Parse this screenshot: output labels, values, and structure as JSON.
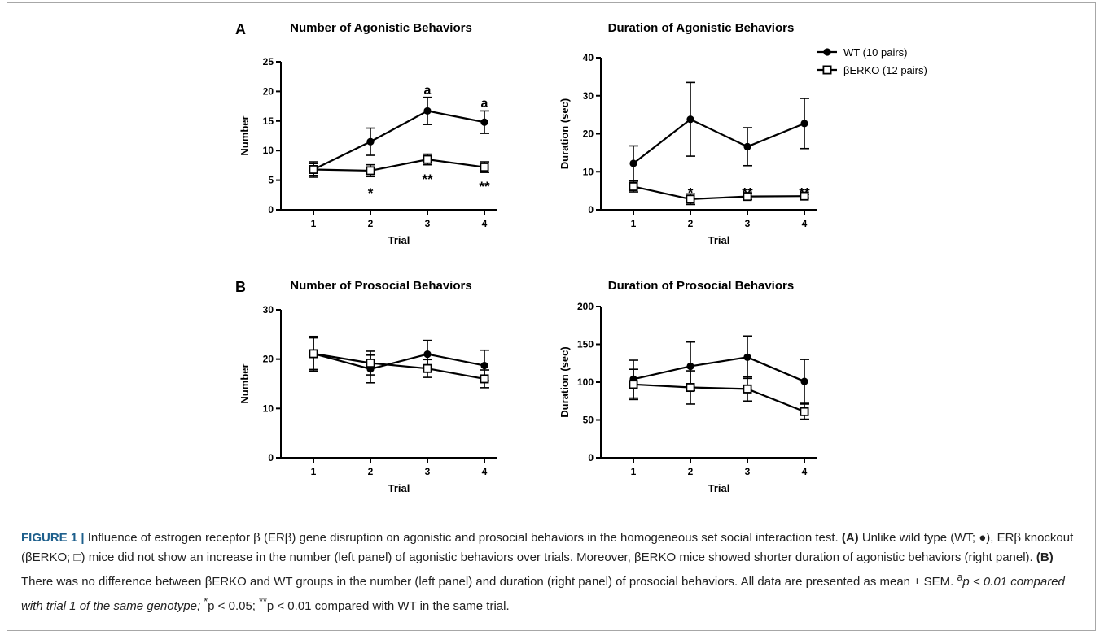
{
  "panel_letters": [
    "A",
    "B"
  ],
  "legend": {
    "wt": "WT (10 pairs)",
    "berko": "βERKO (12 pairs)"
  },
  "chart_data": [
    {
      "type": "line",
      "panel": "A",
      "title": "Number of Agonistic Behaviors",
      "xlabel": "Trial",
      "ylabel": "Number",
      "x": [
        1,
        2,
        3,
        4
      ],
      "xticks": [
        "1",
        "2",
        "3",
        "4"
      ],
      "ylim": [
        0,
        25
      ],
      "yticks": [
        0,
        5,
        10,
        15,
        20,
        25
      ],
      "series": [
        {
          "name": "WT (10 pairs)",
          "marker": "filled-circle",
          "values": [
            6.8,
            11.5,
            16.7,
            14.8
          ],
          "sem": [
            1.3,
            2.3,
            2.3,
            1.9
          ]
        },
        {
          "name": "βERKO (12 pairs)",
          "marker": "open-square",
          "values": [
            6.8,
            6.6,
            8.5,
            7.2
          ],
          "sem": [
            1.0,
            1.0,
            0.9,
            0.9
          ]
        }
      ],
      "annotations": [
        {
          "x": 3,
          "y": 19.5,
          "text": "a"
        },
        {
          "x": 4,
          "y": 17.3,
          "text": "a"
        },
        {
          "x": 2,
          "y": 3.4,
          "text": "*"
        },
        {
          "x": 3,
          "y": 5.8,
          "text": "**"
        },
        {
          "x": 4,
          "y": 4.5,
          "text": "**"
        }
      ]
    },
    {
      "type": "line",
      "panel": "A",
      "title": "Duration of Agonistic Behaviors",
      "xlabel": "Trial",
      "ylabel": "Duration (sec)",
      "x": [
        1,
        2,
        3,
        4
      ],
      "xticks": [
        "1",
        "2",
        "3",
        "4"
      ],
      "ylim": [
        0,
        40
      ],
      "yticks": [
        0,
        10,
        20,
        30,
        40
      ],
      "legend": "top-right",
      "series": [
        {
          "name": "WT (10 pairs)",
          "marker": "filled-circle",
          "values": [
            12.2,
            23.8,
            16.6,
            22.7
          ],
          "sem": [
            4.6,
            9.7,
            5.0,
            6.6
          ]
        },
        {
          "name": "βERKO (12 pairs)",
          "marker": "open-square",
          "values": [
            6.1,
            2.8,
            3.5,
            3.6
          ],
          "sem": [
            1.4,
            1.4,
            0.8,
            0.5
          ]
        }
      ],
      "annotations": [
        {
          "x": 2,
          "y": 5.5,
          "text": "*"
        },
        {
          "x": 3,
          "y": 5.5,
          "text": "**"
        },
        {
          "x": 4,
          "y": 5.5,
          "text": "**"
        }
      ]
    },
    {
      "type": "line",
      "panel": "B",
      "title": "Number of Prosocial Behaviors",
      "xlabel": "Trial",
      "ylabel": "Number",
      "x": [
        1,
        2,
        3,
        4
      ],
      "xticks": [
        "1",
        "2",
        "3",
        "4"
      ],
      "ylim": [
        0,
        30
      ],
      "yticks": [
        0,
        10,
        20,
        30
      ],
      "series": [
        {
          "name": "WT (10 pairs)",
          "marker": "filled-circle",
          "values": [
            21.1,
            18.0,
            21.0,
            18.7
          ],
          "sem": [
            3.5,
            2.8,
            2.8,
            3.1
          ]
        },
        {
          "name": "βERKO (12 pairs)",
          "marker": "open-square",
          "values": [
            21.1,
            19.2,
            18.1,
            16.0
          ],
          "sem": [
            3.2,
            2.4,
            1.8,
            1.8
          ]
        }
      ],
      "annotations": []
    },
    {
      "type": "line",
      "panel": "B",
      "title": "Duration of Prosocial Behaviors",
      "xlabel": "Trial",
      "ylabel": "Duration (sec)",
      "x": [
        1,
        2,
        3,
        4
      ],
      "xticks": [
        "1",
        "2",
        "3",
        "4"
      ],
      "ylim": [
        0,
        200
      ],
      "yticks": [
        0,
        50,
        100,
        150,
        200
      ],
      "series": [
        {
          "name": "WT (10 pairs)",
          "marker": "filled-circle",
          "values": [
            104,
            121,
            133,
            101
          ],
          "sem": [
            25,
            32,
            28,
            29
          ]
        },
        {
          "name": "βERKO (12 pairs)",
          "marker": "open-square",
          "values": [
            97,
            93,
            91,
            61
          ],
          "sem": [
            20,
            22,
            16,
            10
          ]
        }
      ],
      "annotations": []
    }
  ],
  "caption": {
    "label": "FIGURE 1 |",
    "p1": " Influence of estrogen receptor β (ERβ) gene disruption on agonistic and prosocial behaviors in the homogeneous set social interaction test. ",
    "a_tag": "(A)",
    "p2": " Unlike wild type (WT; ●), ERβ knockout (βERKO; □) mice did not show an increase in the number (left panel) of agonistic behaviors over trials. Moreover, βERKO mice showed shorter duration of agonistic behaviors (right panel). ",
    "b_tag": "(B)",
    "p3": " There was no difference between βERKO and WT groups in the number (left panel) and duration (right panel) of prosocial behaviors. All data are presented as mean ± SEM. ",
    "sup_a": "a",
    "p4": "p < 0.01 compared with trial 1 of the same genotype; ",
    "sup_star": "*",
    "p5": "p < 0.05; ",
    "sup_dstar": "**",
    "p6": "p < 0.01 compared with WT in the same trial."
  }
}
